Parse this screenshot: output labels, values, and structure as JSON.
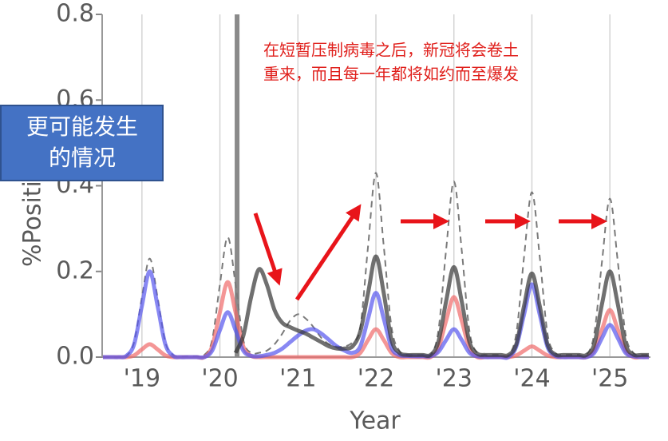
{
  "chart_data": {
    "type": "line",
    "x_label": "Year",
    "y_label": "%Positive ILI",
    "annotation": [
      "在短暂压制病毒之后，新冠将会卷土",
      "重来，而且每一年都将如约而至爆发"
    ],
    "callout": [
      "更可能发生",
      "的情况"
    ],
    "xlim": [
      2018.49,
      2025.52
    ],
    "ylim": [
      0,
      0.8
    ],
    "xticks": [
      {
        "value": 2019,
        "label": "'19"
      },
      {
        "value": 2020,
        "label": "'20"
      },
      {
        "value": 2021,
        "label": "'21"
      },
      {
        "value": 2022,
        "label": "'22"
      },
      {
        "value": 2023,
        "label": "'23"
      },
      {
        "value": 2024,
        "label": "'24"
      },
      {
        "value": 2025,
        "label": "'25"
      }
    ],
    "yticks": [
      {
        "value": 0,
        "label": "0.0"
      },
      0.2,
      0.4,
      0.6,
      0.8
    ],
    "vline": 2020.22,
    "grid": true,
    "x": [
      2018.5,
      2018.6,
      2018.7,
      2018.8,
      2018.9,
      2019.0,
      2019.1,
      2019.2,
      2019.3,
      2019.4,
      2019.5,
      2019.6,
      2019.7,
      2019.8,
      2019.9,
      2020.0,
      2020.1,
      2020.2,
      2020.3,
      2020.4,
      2020.5,
      2020.6,
      2020.7,
      2020.8,
      2020.9,
      2021.0,
      2021.1,
      2021.2,
      2021.3,
      2021.4,
      2021.5,
      2021.6,
      2021.7,
      2021.8,
      2021.9,
      2022.0,
      2022.1,
      2022.2,
      2022.3,
      2022.4,
      2022.5,
      2022.6,
      2022.7,
      2022.8,
      2022.9,
      2023.0,
      2023.1,
      2023.2,
      2023.3,
      2023.4,
      2023.5,
      2023.6,
      2023.7,
      2023.8,
      2023.9,
      2024.0,
      2024.1,
      2024.2,
      2024.3,
      2024.4,
      2024.5,
      2024.6,
      2024.7,
      2024.8,
      2024.9,
      2025.0,
      2025.1,
      2025.2,
      2025.3,
      2025.4,
      2025.5
    ],
    "series": [
      {
        "color": "#7a7a7a",
        "dashed": true,
        "values": [
          0,
          0,
          0,
          0.003,
          0.035,
          0.14,
          0.23,
          0.14,
          0.035,
          0.005,
          0.002,
          0.002,
          0.002,
          0.005,
          0.04,
          0.17,
          0.28,
          0.17,
          0.04,
          0.01,
          0.01,
          0.015,
          0.03,
          0.055,
          0.085,
          0.1,
          0.09,
          0.07,
          0.045,
          0.03,
          0.025,
          0.025,
          0.035,
          0.07,
          0.26,
          0.43,
          0.26,
          0.07,
          0.015,
          0.005,
          0.005,
          0.005,
          0.005,
          0.06,
          0.25,
          0.41,
          0.25,
          0.06,
          0.01,
          0.005,
          0.005,
          0.005,
          0.005,
          0.055,
          0.235,
          0.385,
          0.235,
          0.055,
          0.01,
          0.005,
          0.005,
          0.005,
          0.005,
          0.055,
          0.225,
          0.37,
          0.225,
          0.055,
          0.01,
          0.005,
          0.005
        ]
      },
      {
        "color": "#f06a6a",
        "values": [
          0,
          0,
          0,
          0,
          0.004,
          0.018,
          0.03,
          0.018,
          0.004,
          0,
          0,
          0,
          0,
          0,
          0.025,
          0.105,
          0.175,
          0.105,
          0.025,
          0.003,
          0,
          0,
          0,
          0,
          0,
          0,
          0,
          0,
          0,
          0,
          0,
          0,
          0,
          0.01,
          0.04,
          0.065,
          0.04,
          0.01,
          0,
          0,
          0,
          0,
          0,
          0.02,
          0.085,
          0.14,
          0.085,
          0.02,
          0,
          0,
          0,
          0,
          0,
          0.004,
          0.015,
          0.025,
          0.015,
          0.004,
          0,
          0,
          0,
          0,
          0,
          0.016,
          0.065,
          0.11,
          0.065,
          0.016,
          0,
          0,
          0
        ]
      },
      {
        "color": "#5555ee",
        "values": [
          0,
          0,
          0,
          0.003,
          0.03,
          0.12,
          0.2,
          0.12,
          0.03,
          0.003,
          0,
          0,
          0,
          0,
          0.015,
          0.063,
          0.105,
          0.063,
          0.015,
          0.003,
          0.002,
          0.005,
          0.01,
          0.02,
          0.035,
          0.05,
          0.062,
          0.065,
          0.055,
          0.04,
          0.025,
          0.015,
          0.01,
          0.025,
          0.09,
          0.15,
          0.09,
          0.022,
          0.005,
          0.003,
          0.002,
          0.002,
          0.002,
          0.012,
          0.04,
          0.065,
          0.04,
          0.01,
          0.002,
          0,
          0,
          0,
          0,
          0.025,
          0.1,
          0.17,
          0.1,
          0.024,
          0.003,
          0,
          0,
          0,
          0,
          0.01,
          0.045,
          0.075,
          0.045,
          0.01,
          0.002,
          0,
          0
        ]
      },
      {
        "color": "#333333",
        "values": [
          null,
          null,
          null,
          null,
          null,
          null,
          null,
          null,
          null,
          null,
          null,
          null,
          null,
          null,
          null,
          null,
          null,
          0.01,
          0.05,
          0.14,
          0.205,
          0.17,
          0.11,
          0.08,
          0.07,
          0.062,
          0.055,
          0.045,
          0.035,
          0.025,
          0.02,
          0.02,
          0.025,
          0.06,
          0.15,
          0.235,
          0.15,
          0.04,
          0.01,
          0.005,
          0.005,
          0.005,
          0.005,
          0.035,
          0.13,
          0.21,
          0.13,
          0.035,
          0.008,
          0.005,
          0.005,
          0.005,
          0.005,
          0.03,
          0.12,
          0.195,
          0.12,
          0.03,
          0.006,
          0.005,
          0.005,
          0.005,
          0.005,
          0.03,
          0.125,
          0.2,
          0.125,
          0.03,
          0.006,
          0.005,
          0.005
        ]
      }
    ]
  }
}
